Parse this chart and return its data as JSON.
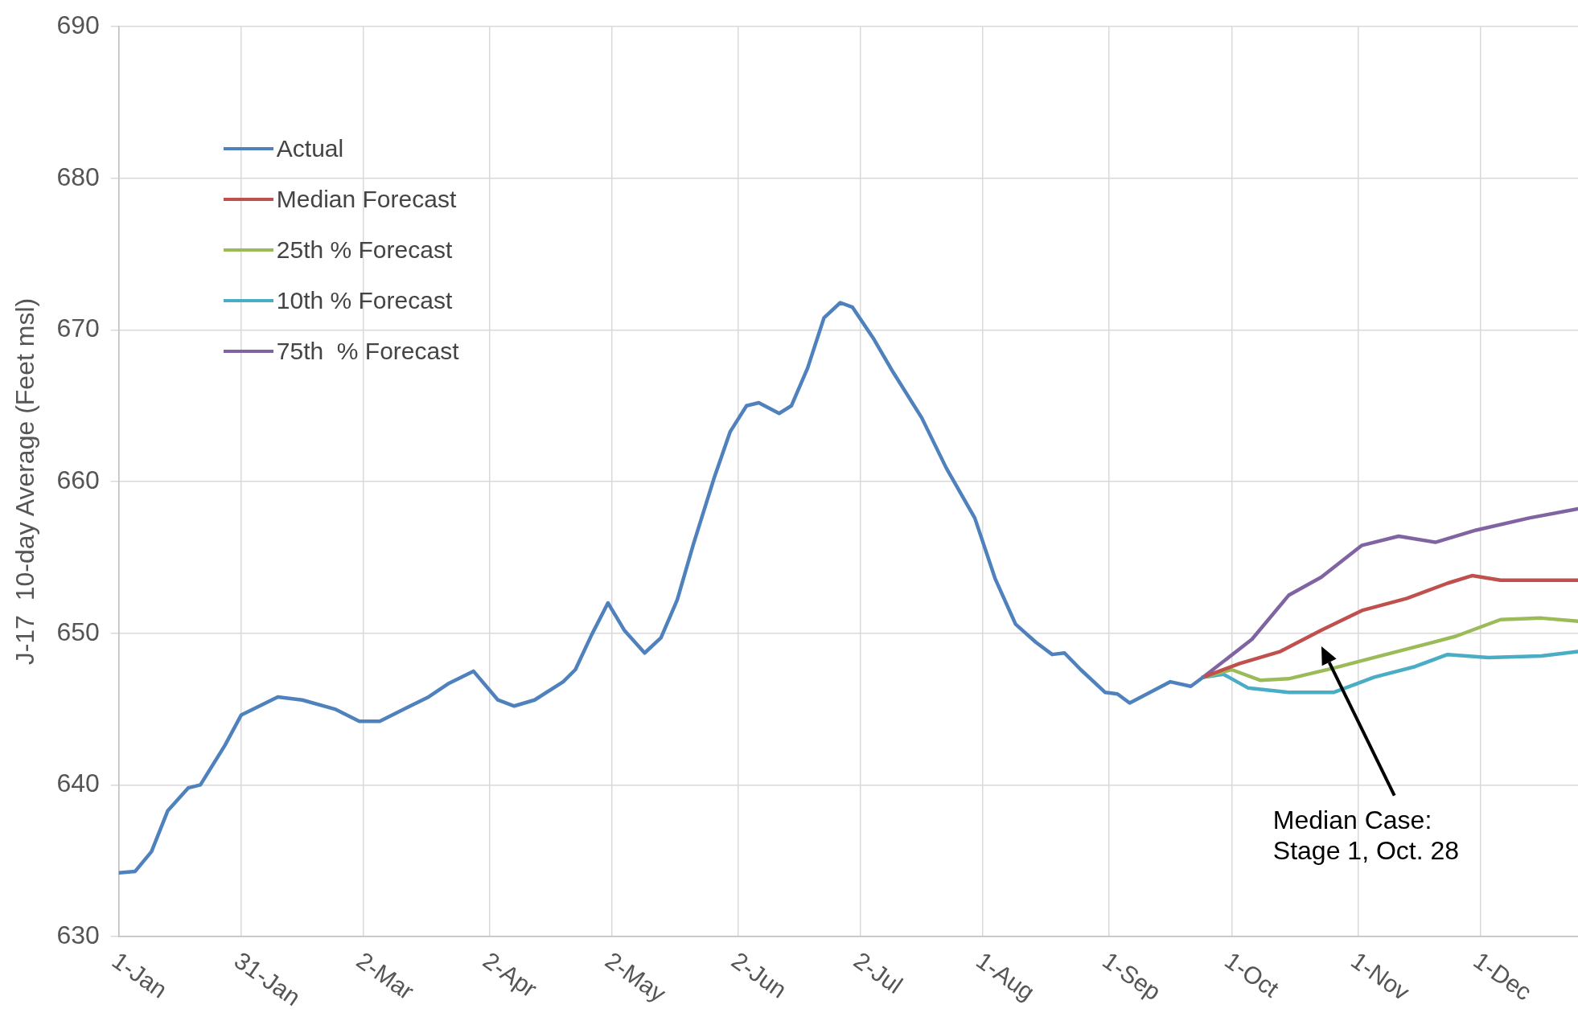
{
  "chart_data": {
    "type": "line",
    "ylabel": "J-17  10-day Average (Feet msl)",
    "xlim": [
      "--01-01",
      "--12-25"
    ],
    "xticks": [
      {
        "value": "--01-01",
        "label": "1-Jan"
      },
      {
        "value": "--01-31",
        "label": "31-Jan"
      },
      {
        "value": "--03-02",
        "label": "2-Mar"
      },
      {
        "value": "--04-02",
        "label": "2-Apr"
      },
      {
        "value": "--05-02",
        "label": "2-May"
      },
      {
        "value": "--06-02",
        "label": "2-Jun"
      },
      {
        "value": "--07-02",
        "label": "2-Jul"
      },
      {
        "value": "--08-01",
        "label": "1-Aug"
      },
      {
        "value": "--09-01",
        "label": "1-Sep"
      },
      {
        "value": "--10-01",
        "label": "1-Oct"
      },
      {
        "value": "--11-01",
        "label": "1-Nov"
      },
      {
        "value": "--12-01",
        "label": "1-Dec"
      }
    ],
    "ylim": [
      630,
      690
    ],
    "yticks": [
      630,
      640,
      650,
      660,
      670,
      680,
      690
    ],
    "grid": true,
    "legend": "top left",
    "marker": "none",
    "line_style": "solid",
    "annotations": [
      "Median Case:\nStage 1, Oct. 28"
    ],
    "series": [
      {
        "name": "Actual",
        "color": "#4f81bd",
        "x": [
          "--01-01",
          "--01-05",
          "--01-09",
          "--01-13",
          "--01-18",
          "--01-21",
          "--01-27",
          "--01-31",
          "--02-03",
          "--02-09",
          "--02-15",
          "--02-23",
          "--03-01",
          "--03-06",
          "--03-12",
          "--03-18",
          "--03-23",
          "--03-29",
          "--04-04",
          "--04-08",
          "--04-13",
          "--04-20",
          "--04-23",
          "--04-27",
          "--05-01",
          "--05-05",
          "--05-10",
          "--05-14",
          "--05-18",
          "--05-22",
          "--05-27",
          "--05-31",
          "--06-04",
          "--06-07",
          "--06-12",
          "--06-15",
          "--06-19",
          "--06-23",
          "--06-27",
          "--06-30",
          "--07-05",
          "--07-10",
          "--07-17",
          "--07-23",
          "--07-30",
          "--08-04",
          "--08-09",
          "--08-14",
          "--08-18",
          "--08-21",
          "--08-25",
          "--08-31",
          "--09-03",
          "--09-06",
          "--09-11",
          "--09-16",
          "--09-21",
          "--09-24"
        ],
        "values": [
          634.2,
          634.3,
          635.6,
          638.3,
          639.8,
          640,
          642.6,
          644.6,
          645,
          645.8,
          645.6,
          645,
          644.2,
          644.2,
          645,
          645.8,
          646.7,
          647.5,
          645.6,
          645.2,
          645.6,
          646.8,
          647.6,
          649.9,
          652,
          650.2,
          648.7,
          649.7,
          652.2,
          655.9,
          660.2,
          663.3,
          665,
          665.2,
          664.5,
          665,
          667.5,
          670.8,
          671.8,
          671.5,
          669.5,
          667.2,
          664.2,
          660.9,
          657.6,
          653.6,
          650.6,
          649.4,
          648.6,
          648.7,
          647.6,
          646.1,
          646,
          645.4,
          646.1,
          646.8,
          646.5,
          647.1
        ]
      },
      {
        "name": "Median Forecast",
        "color": "#c0504d",
        "x": [
          "--09-24",
          "--10-03",
          "--10-13",
          "--10-23",
          "--11-02",
          "--11-13",
          "--11-23",
          "--11-29",
          "--12-06",
          "--12-25"
        ],
        "values": [
          647.1,
          648,
          648.8,
          650.2,
          651.5,
          652.3,
          653.3,
          653.8,
          653.5,
          653.5
        ]
      },
      {
        "name": "25th % Forecast",
        "color": "#9bbb59",
        "x": [
          "--09-24",
          "--10-01",
          "--10-08",
          "--10-15",
          "--10-26",
          "--11-05",
          "--11-18",
          "--11-25",
          "--12-06",
          "--12-16",
          "--12-25"
        ],
        "values": [
          647.1,
          647.6,
          646.9,
          647,
          647.7,
          648.4,
          649.3,
          649.8,
          650.9,
          651,
          650.8
        ]
      },
      {
        "name": "10th % Forecast",
        "color": "#4bacc6",
        "x": [
          "--09-24",
          "--09-29",
          "--10-05",
          "--10-15",
          "--10-26",
          "--11-05",
          "--11-15",
          "--11-23",
          "--12-03",
          "--12-16",
          "--12-25"
        ],
        "values": [
          647.1,
          647.3,
          646.4,
          646.1,
          646.1,
          647.1,
          647.8,
          648.6,
          648.4,
          648.5,
          648.8
        ]
      },
      {
        "name": "75th  % Forecast",
        "color": "#8064a2",
        "x": [
          "--09-24",
          "--10-06",
          "--10-15",
          "--10-23",
          "--11-02",
          "--11-11",
          "--11-20",
          "--11-30",
          "--12-13",
          "--12-25"
        ],
        "values": [
          647.1,
          649.6,
          652.5,
          653.7,
          655.8,
          656.4,
          656,
          656.8,
          657.6,
          658.2
        ]
      }
    ]
  }
}
